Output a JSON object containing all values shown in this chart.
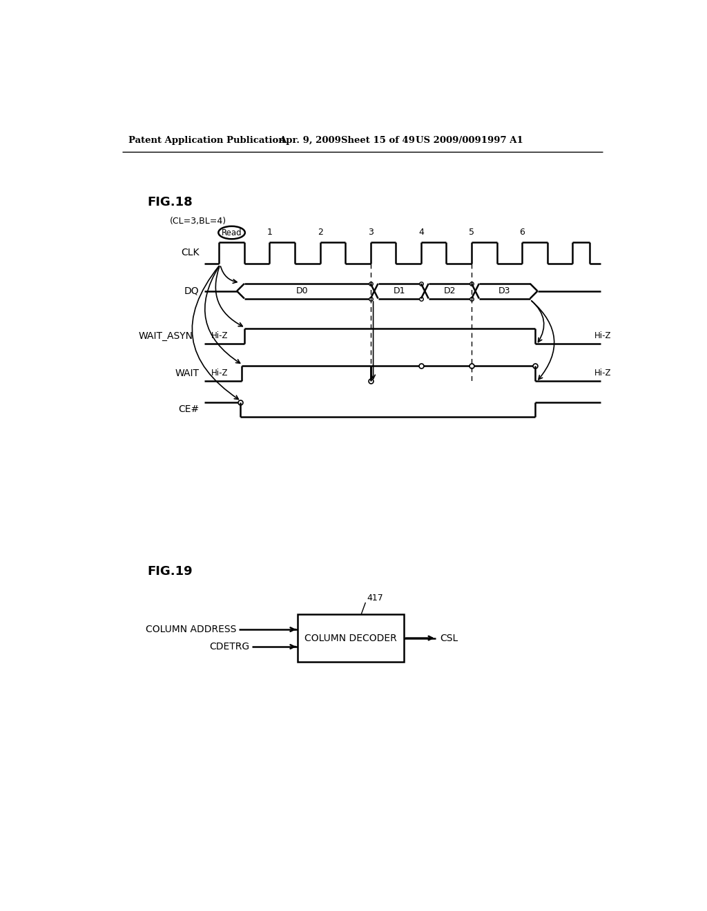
{
  "title_header": "Patent Application Publication",
  "date_header": "Apr. 9, 2009",
  "sheet_header": "Sheet 15 of 49",
  "patent_header": "US 2009/0091997 A1",
  "fig18_label": "FIG.18",
  "fig19_label": "FIG.19",
  "subtitle": "(CL=3,BL=4)",
  "clk_label": "CLK",
  "dq_label": "DQ",
  "wait_asyn_label": "WAIT_ASYN",
  "wait_label": "WAIT",
  "ce_label": "CE#",
  "read_label": "Read",
  "hi_z": "Hi-Z",
  "clock_numbers": [
    "1",
    "2",
    "3",
    "4",
    "5",
    "6"
  ],
  "d_labels": [
    "D0",
    "D1",
    "D2",
    "D3"
  ],
  "col_addr_label": "COLUMN ADDRESS",
  "cdetrg_label": "CDETRG",
  "col_dec_label": "COLUMN DECODER",
  "csl_label": "CSL",
  "ref_num": "417",
  "bg_color": "#ffffff",
  "line_color": "#000000"
}
